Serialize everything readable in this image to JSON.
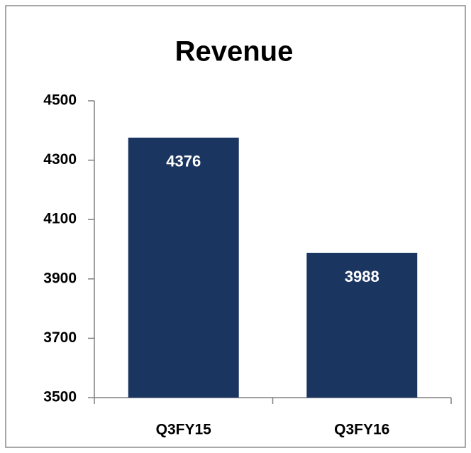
{
  "chart_data": {
    "type": "bar",
    "title": "Revenue",
    "categories": [
      "Q3FY15",
      "Q3FY16"
    ],
    "values": [
      4376,
      3988
    ],
    "color": "#1b3561",
    "ylim": [
      3500,
      4500
    ],
    "yticks": [
      3500,
      3700,
      3900,
      4100,
      4300,
      4500
    ],
    "grid": false
  }
}
